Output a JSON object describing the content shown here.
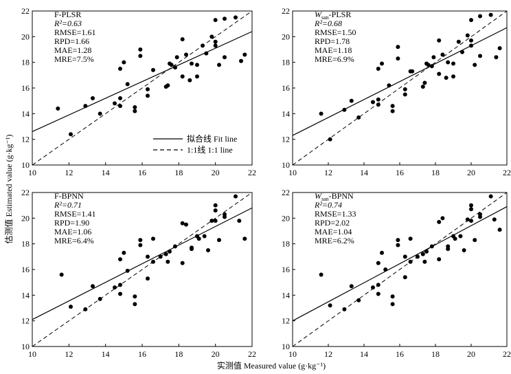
{
  "figure": {
    "xlabel": "实测值 Measured value (g·kg⁻¹)",
    "ylabel": "估测值 Estimated value (g·kg⁻¹)",
    "legend": {
      "fit_label": "拟合线 Fit line",
      "identity_label": "1:1线 1:1 line"
    }
  },
  "chart_data": [
    {
      "type": "scatter",
      "name": "F-PLSR",
      "title_parts": [
        "F-PLSR"
      ],
      "stats": [
        "R²=0.63",
        "RMSE=1.61",
        "RPD=1.66",
        "MAE=1.28",
        "MRE=7.5%"
      ],
      "xlim": [
        10,
        22
      ],
      "ylim": [
        10,
        22
      ],
      "xticks": [
        10,
        12,
        14,
        16,
        18,
        20,
        22
      ],
      "yticks": [
        10,
        12,
        14,
        16,
        18,
        20,
        22
      ],
      "fit_line": [
        [
          10,
          12.6
        ],
        [
          22,
          20.4
        ]
      ],
      "points": [
        [
          11.4,
          14.4
        ],
        [
          12.1,
          12.4
        ],
        [
          12.9,
          14.6
        ],
        [
          13.3,
          15.2
        ],
        [
          13.7,
          14.0
        ],
        [
          14.5,
          14.8
        ],
        [
          14.8,
          14.6
        ],
        [
          14.8,
          15.2
        ],
        [
          14.8,
          17.5
        ],
        [
          15.0,
          18.0
        ],
        [
          15.2,
          16.3
        ],
        [
          15.6,
          14.5
        ],
        [
          15.6,
          14.2
        ],
        [
          15.9,
          18.5
        ],
        [
          15.9,
          19.0
        ],
        [
          16.3,
          15.4
        ],
        [
          16.3,
          15.9
        ],
        [
          16.6,
          17.4
        ],
        [
          17.3,
          16.1
        ],
        [
          17.4,
          16.2
        ],
        [
          17.5,
          17.9
        ],
        [
          17.6,
          17.8
        ],
        [
          17.8,
          17.6
        ],
        [
          17.9,
          18.4
        ],
        [
          18.2,
          19.8
        ],
        [
          18.2,
          16.9
        ],
        [
          18.4,
          18.6
        ],
        [
          18.6,
          16.6
        ],
        [
          18.7,
          17.9
        ],
        [
          19.0,
          16.9
        ],
        [
          19.0,
          17.8
        ],
        [
          19.3,
          19.3
        ],
        [
          19.5,
          18.7
        ],
        [
          19.8,
          20.0
        ],
        [
          20.0,
          19.6
        ],
        [
          20.0,
          19.3
        ],
        [
          20.0,
          21.3
        ],
        [
          20.2,
          17.8
        ],
        [
          20.5,
          21.4
        ],
        [
          20.5,
          18.4
        ],
        [
          21.1,
          21.5
        ],
        [
          21.4,
          18.1
        ],
        [
          21.6,
          18.6
        ]
      ]
    },
    {
      "type": "scatter",
      "name": "Wsan-PLSR",
      "title_parts": [
        "W",
        "san",
        "-PLSR"
      ],
      "stats": [
        "R²=0.68",
        "RMSE=1.50",
        "RPD=1.78",
        "MAE=1.18",
        "MRE=6.9%"
      ],
      "xlim": [
        10,
        22
      ],
      "ylim": [
        10,
        22
      ],
      "xticks": [
        10,
        12,
        14,
        16,
        18,
        20,
        22
      ],
      "yticks": [
        10,
        12,
        14,
        16,
        18,
        20,
        22
      ],
      "fit_line": [
        [
          10,
          12.3
        ],
        [
          22,
          20.7
        ]
      ],
      "points": [
        [
          11.6,
          14.0
        ],
        [
          12.1,
          12.0
        ],
        [
          12.9,
          14.3
        ],
        [
          13.3,
          15.0
        ],
        [
          13.7,
          13.7
        ],
        [
          14.5,
          14.9
        ],
        [
          14.8,
          15.1
        ],
        [
          14.8,
          14.7
        ],
        [
          14.8,
          17.5
        ],
        [
          15.0,
          17.9
        ],
        [
          15.4,
          16.2
        ],
        [
          15.6,
          14.6
        ],
        [
          15.6,
          14.2
        ],
        [
          15.9,
          18.3
        ],
        [
          15.9,
          19.2
        ],
        [
          16.3,
          15.5
        ],
        [
          16.3,
          15.9
        ],
        [
          16.6,
          17.3
        ],
        [
          16.7,
          17.3
        ],
        [
          17.3,
          16.1
        ],
        [
          17.4,
          16.4
        ],
        [
          17.5,
          17.9
        ],
        [
          17.6,
          17.8
        ],
        [
          17.8,
          17.7
        ],
        [
          17.9,
          18.4
        ],
        [
          18.2,
          19.7
        ],
        [
          18.2,
          17.1
        ],
        [
          18.4,
          18.6
        ],
        [
          18.6,
          16.8
        ],
        [
          18.7,
          18.0
        ],
        [
          19.0,
          16.9
        ],
        [
          19.0,
          17.9
        ],
        [
          19.3,
          19.6
        ],
        [
          19.5,
          18.8
        ],
        [
          19.8,
          20.1
        ],
        [
          20.0,
          19.7
        ],
        [
          20.0,
          19.3
        ],
        [
          20.0,
          21.3
        ],
        [
          20.2,
          17.8
        ],
        [
          20.5,
          21.6
        ],
        [
          20.5,
          18.5
        ],
        [
          21.1,
          21.7
        ],
        [
          21.4,
          18.4
        ],
        [
          21.6,
          19.1
        ]
      ]
    },
    {
      "type": "scatter",
      "name": "F-BPNN",
      "title_parts": [
        "F-BPNN"
      ],
      "stats": [
        "R²=0.71",
        "RMSE=1.41",
        "RPD=1.90",
        "MAE=1.06",
        "MRE=6.4%"
      ],
      "xlim": [
        10,
        22
      ],
      "ylim": [
        10,
        22
      ],
      "xticks": [
        10,
        12,
        14,
        16,
        18,
        20,
        22
      ],
      "yticks": [
        10,
        12,
        14,
        16,
        18,
        20,
        22
      ],
      "fit_line": [
        [
          10,
          12.1
        ],
        [
          22,
          20.8
        ]
      ],
      "points": [
        [
          11.6,
          15.6
        ],
        [
          12.1,
          13.1
        ],
        [
          12.9,
          12.9
        ],
        [
          13.3,
          14.7
        ],
        [
          13.7,
          13.7
        ],
        [
          14.5,
          14.6
        ],
        [
          14.8,
          14.1
        ],
        [
          14.8,
          14.8
        ],
        [
          14.8,
          16.8
        ],
        [
          15.0,
          17.3
        ],
        [
          15.2,
          15.9
        ],
        [
          15.6,
          13.9
        ],
        [
          15.6,
          13.3
        ],
        [
          15.9,
          17.9
        ],
        [
          15.9,
          18.3
        ],
        [
          16.3,
          15.3
        ],
        [
          16.3,
          17.0
        ],
        [
          16.6,
          16.6
        ],
        [
          16.6,
          18.4
        ],
        [
          17.0,
          17.0
        ],
        [
          17.3,
          17.2
        ],
        [
          17.4,
          16.6
        ],
        [
          17.5,
          17.4
        ],
        [
          17.8,
          17.8
        ],
        [
          18.2,
          19.6
        ],
        [
          18.2,
          16.5
        ],
        [
          18.4,
          19.5
        ],
        [
          18.7,
          17.6
        ],
        [
          18.7,
          17.7
        ],
        [
          19.0,
          18.6
        ],
        [
          19.1,
          18.4
        ],
        [
          19.4,
          18.6
        ],
        [
          19.6,
          17.5
        ],
        [
          19.8,
          19.8
        ],
        [
          20.0,
          19.8
        ],
        [
          20.0,
          20.6
        ],
        [
          20.0,
          21.0
        ],
        [
          20.2,
          18.3
        ],
        [
          20.5,
          20.1
        ],
        [
          20.5,
          20.3
        ],
        [
          21.1,
          21.7
        ],
        [
          21.3,
          19.8
        ],
        [
          21.6,
          18.4
        ]
      ]
    },
    {
      "type": "scatter",
      "name": "Wsan-BPNN",
      "title_parts": [
        "W",
        "san",
        "-BPNN"
      ],
      "stats": [
        "R²=0.74",
        "RMSE=1.33",
        "RPD=2.02",
        "MAE=1.04",
        "MRE=6.2%"
      ],
      "xlim": [
        10,
        22
      ],
      "ylim": [
        10,
        22
      ],
      "xticks": [
        10,
        12,
        14,
        16,
        18,
        20,
        22
      ],
      "yticks": [
        10,
        12,
        14,
        16,
        18,
        20,
        22
      ],
      "fit_line": [
        [
          10,
          12.0
        ],
        [
          22,
          20.9
        ]
      ],
      "points": [
        [
          11.6,
          15.6
        ],
        [
          12.1,
          13.2
        ],
        [
          12.9,
          12.9
        ],
        [
          13.3,
          14.7
        ],
        [
          13.7,
          13.6
        ],
        [
          14.5,
          14.6
        ],
        [
          14.8,
          14.1
        ],
        [
          14.8,
          14.8
        ],
        [
          14.8,
          16.5
        ],
        [
          15.0,
          17.3
        ],
        [
          15.2,
          16.0
        ],
        [
          15.6,
          13.9
        ],
        [
          15.6,
          13.3
        ],
        [
          15.9,
          17.9
        ],
        [
          15.9,
          18.3
        ],
        [
          16.3,
          15.4
        ],
        [
          16.3,
          17.0
        ],
        [
          16.6,
          16.6
        ],
        [
          16.6,
          18.4
        ],
        [
          17.0,
          17.0
        ],
        [
          17.3,
          17.2
        ],
        [
          17.4,
          16.6
        ],
        [
          17.5,
          17.4
        ],
        [
          17.8,
          17.8
        ],
        [
          18.2,
          19.7
        ],
        [
          18.2,
          16.8
        ],
        [
          18.4,
          20.0
        ],
        [
          18.7,
          17.6
        ],
        [
          18.7,
          17.8
        ],
        [
          19.0,
          18.6
        ],
        [
          19.1,
          18.4
        ],
        [
          19.4,
          18.6
        ],
        [
          19.6,
          17.5
        ],
        [
          19.8,
          19.9
        ],
        [
          20.0,
          19.8
        ],
        [
          20.0,
          20.7
        ],
        [
          20.0,
          21.0
        ],
        [
          20.2,
          18.3
        ],
        [
          20.5,
          20.1
        ],
        [
          20.5,
          20.3
        ],
        [
          21.1,
          21.7
        ],
        [
          21.3,
          19.9
        ],
        [
          21.6,
          19.1
        ]
      ]
    }
  ]
}
